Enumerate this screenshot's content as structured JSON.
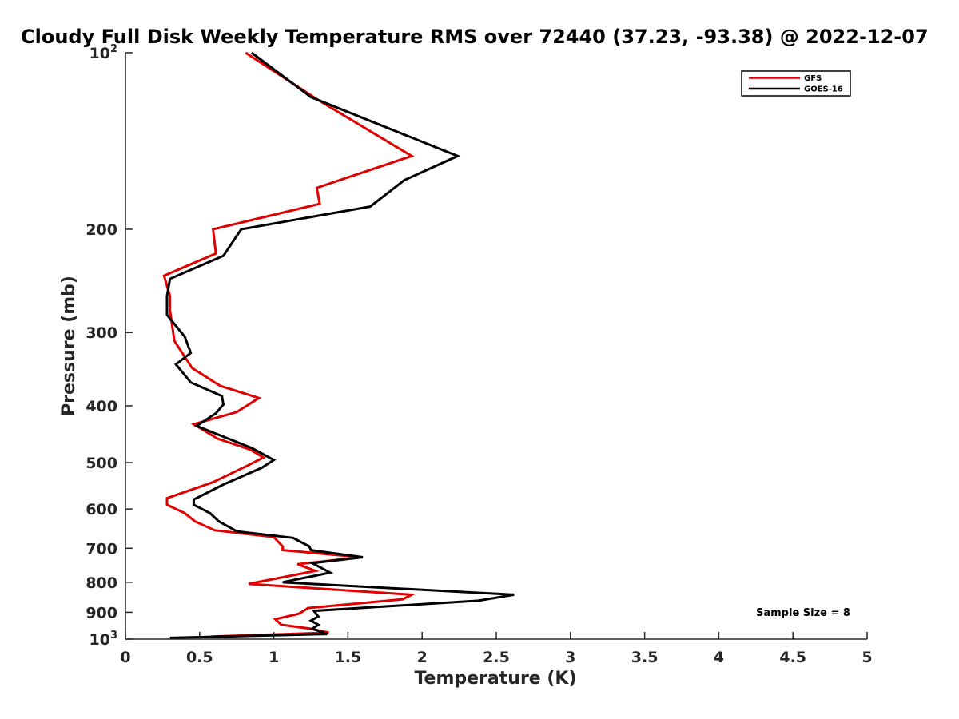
{
  "chart_data": {
    "type": "line",
    "title": "Cloudy Full Disk Weekly Temperature RMS over 72440 (37.23, -93.38) @ 2022-12-07",
    "xlabel": "Temperature (K)",
    "ylabel": "Pressure (mb)",
    "xlim": [
      0,
      5
    ],
    "ylim": [
      100,
      1000
    ],
    "y_scale": "log",
    "y_reversed": true,
    "grid": false,
    "legend_position": "top-right",
    "x_ticks": [
      "0",
      "0.5",
      "1",
      "1.5",
      "2",
      "2.5",
      "3",
      "3.5",
      "4",
      "4.5",
      "5"
    ],
    "x_tick_values": [
      0,
      0.5,
      1,
      1.5,
      2,
      2.5,
      3,
      3.5,
      4,
      4.5,
      5
    ],
    "y_ticks": [
      {
        "value": 100,
        "base": "10",
        "exp": "2"
      },
      {
        "value": 200,
        "label": "200"
      },
      {
        "value": 300,
        "label": "300"
      },
      {
        "value": 400,
        "label": "400"
      },
      {
        "value": 500,
        "label": "500"
      },
      {
        "value": 600,
        "label": "600"
      },
      {
        "value": 700,
        "label": "700"
      },
      {
        "value": 800,
        "label": "800"
      },
      {
        "value": 900,
        "label": "900"
      },
      {
        "value": 1000,
        "base": "10",
        "exp": "3"
      }
    ],
    "annotation": "Sample Size = 8",
    "series": [
      {
        "name": "GFS",
        "color": "#e00000",
        "points": [
          [
            0.81,
            100
          ],
          [
            1.29,
            120
          ],
          [
            1.93,
            150
          ],
          [
            1.29,
            170
          ],
          [
            1.31,
            181
          ],
          [
            0.59,
            200
          ],
          [
            0.61,
            220
          ],
          [
            0.26,
            240
          ],
          [
            0.3,
            260
          ],
          [
            0.3,
            275
          ],
          [
            0.33,
            310
          ],
          [
            0.45,
            345
          ],
          [
            0.64,
            370
          ],
          [
            0.9,
            388
          ],
          [
            0.75,
            410
          ],
          [
            0.46,
            430
          ],
          [
            0.62,
            455
          ],
          [
            0.84,
            475
          ],
          [
            0.93,
            490
          ],
          [
            0.83,
            505
          ],
          [
            0.59,
            540
          ],
          [
            0.28,
            575
          ],
          [
            0.28,
            590
          ],
          [
            0.4,
            610
          ],
          [
            0.47,
            630
          ],
          [
            0.6,
            652
          ],
          [
            1.0,
            670
          ],
          [
            1.06,
            695
          ],
          [
            1.06,
            705
          ],
          [
            1.59,
            725
          ],
          [
            1.16,
            745
          ],
          [
            1.28,
            765
          ],
          [
            0.83,
            805
          ],
          [
            1.93,
            840
          ],
          [
            1.87,
            855
          ],
          [
            1.23,
            885
          ],
          [
            1.17,
            905
          ],
          [
            1.01,
            925
          ],
          [
            1.05,
            945
          ],
          [
            1.25,
            960
          ],
          [
            1.37,
            975
          ],
          [
            0.58,
            990
          ]
        ]
      },
      {
        "name": "GOES-16",
        "color": "#000000",
        "points": [
          [
            0.85,
            100
          ],
          [
            1.25,
            119
          ],
          [
            2.24,
            150
          ],
          [
            1.88,
            165
          ],
          [
            1.65,
            183
          ],
          [
            0.78,
            200
          ],
          [
            0.66,
            222
          ],
          [
            0.3,
            243
          ],
          [
            0.28,
            260
          ],
          [
            0.28,
            280
          ],
          [
            0.4,
            305
          ],
          [
            0.44,
            325
          ],
          [
            0.34,
            340
          ],
          [
            0.44,
            365
          ],
          [
            0.65,
            385
          ],
          [
            0.66,
            398
          ],
          [
            0.61,
            412
          ],
          [
            0.48,
            433
          ],
          [
            0.85,
            472
          ],
          [
            1.0,
            495
          ],
          [
            0.92,
            510
          ],
          [
            0.66,
            545
          ],
          [
            0.46,
            578
          ],
          [
            0.46,
            590
          ],
          [
            0.57,
            610
          ],
          [
            0.63,
            630
          ],
          [
            0.75,
            655
          ],
          [
            1.13,
            672
          ],
          [
            1.24,
            695
          ],
          [
            1.25,
            705
          ],
          [
            1.6,
            725
          ],
          [
            1.26,
            742
          ],
          [
            1.38,
            770
          ],
          [
            1.06,
            800
          ],
          [
            2.62,
            840
          ],
          [
            2.38,
            860
          ],
          [
            1.27,
            895
          ],
          [
            1.3,
            915
          ],
          [
            1.25,
            930
          ],
          [
            1.3,
            945
          ],
          [
            1.26,
            960
          ],
          [
            1.36,
            980
          ],
          [
            0.3,
            995
          ]
        ]
      }
    ]
  }
}
